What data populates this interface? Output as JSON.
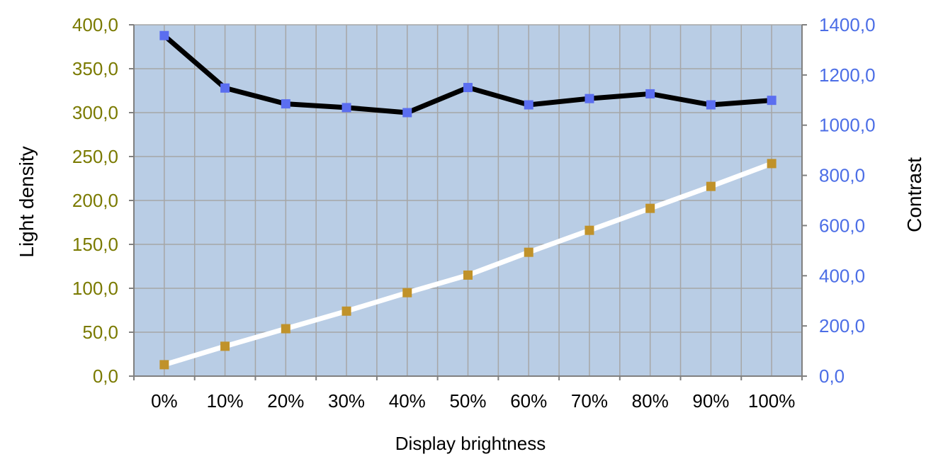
{
  "colors": {
    "plot_bg": "#b9cde5",
    "left_tick": "#7a7a00",
    "right_tick": "#4c6ee6",
    "grid": "#a6a6a6",
    "contrast_line": "#000000",
    "contrast_marker": "#5b6ef0",
    "density_line": "#ffffff",
    "density_marker": "#c0922a"
  },
  "chart_data": {
    "type": "line",
    "xlabel": "Display brightness",
    "ylabel": "Light density",
    "ylabel_right": "Contrast",
    "categories": [
      "0%",
      "10%",
      "20%",
      "30%",
      "40%",
      "50%",
      "60%",
      "70%",
      "80%",
      "90%",
      "100%"
    ],
    "ylim": [
      0,
      400
    ],
    "ylim_right": [
      0,
      1400
    ],
    "yticks": [
      "0,0",
      "50,0",
      "100,0",
      "150,0",
      "200,0",
      "250,0",
      "300,0",
      "350,0",
      "400,0"
    ],
    "yticks_values": [
      0,
      50,
      100,
      150,
      200,
      250,
      300,
      350,
      400
    ],
    "yticks_right": [
      "0,0",
      "200,0",
      "400,0",
      "600,0",
      "800,0",
      "1000,0",
      "1200,0",
      "1400,0"
    ],
    "yticks_right_values": [
      0,
      200,
      400,
      600,
      800,
      1000,
      1200,
      1400
    ],
    "grid": true,
    "series": [
      {
        "axis": "right",
        "values": [
          1357,
          1148,
          1085,
          1070,
          1050,
          1150,
          1081,
          1106,
          1125,
          1081,
          1099
        ]
      },
      {
        "axis": "left",
        "values": [
          13,
          34,
          54,
          74,
          95,
          115,
          141,
          166,
          191,
          216,
          242
        ]
      }
    ]
  }
}
